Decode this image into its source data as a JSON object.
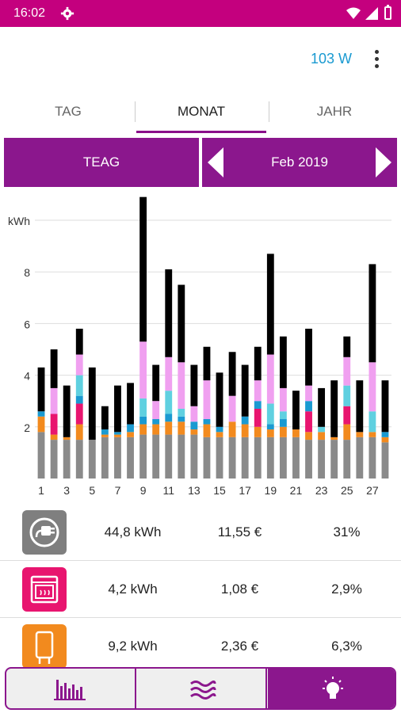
{
  "status_bar": {
    "time": "16:02"
  },
  "header": {
    "power_reading": "103 W"
  },
  "tabs": [
    {
      "label": "TAG"
    },
    {
      "label": "MONAT"
    },
    {
      "label": "JAHR"
    }
  ],
  "selector": {
    "provider": "TEAG",
    "period": "Feb 2019"
  },
  "colors": {
    "accent": "#8b178d",
    "status_bar": "#c4007e",
    "power": "#1a9ad1",
    "series": [
      "#8a8a8a",
      "#f28a1e",
      "#e8156f",
      "#1a9ad1",
      "#5fd0e0",
      "#f0a0f0",
      "#000000"
    ]
  },
  "chart_data": {
    "type": "bar",
    "stacked": true,
    "ylabel": "kWh",
    "ylim": [
      0,
      11
    ],
    "yticks": [
      2,
      4,
      6,
      8
    ],
    "xtick_labels": [
      "1",
      "3",
      "5",
      "7",
      "9",
      "11",
      "13",
      "15",
      "17",
      "19",
      "21",
      "23",
      "25",
      "27"
    ],
    "grid": true,
    "categories": [
      "1",
      "2",
      "3",
      "4",
      "5",
      "6",
      "7",
      "8",
      "9",
      "10",
      "11",
      "12",
      "13",
      "14",
      "15",
      "16",
      "17",
      "18",
      "19",
      "20",
      "21",
      "22",
      "23",
      "24",
      "25",
      "26",
      "27",
      "28"
    ],
    "series": [
      {
        "values": [
          1.8,
          1.5,
          1.5,
          1.5,
          1.5,
          1.6,
          1.6,
          1.6,
          1.7,
          1.7,
          1.7,
          1.7,
          1.7,
          1.6,
          1.6,
          1.6,
          1.6,
          1.6,
          1.6,
          1.6,
          1.6,
          1.5,
          1.5,
          1.5,
          1.5,
          1.6,
          1.6,
          1.4
        ]
      },
      {
        "values": [
          0.6,
          0.2,
          0.1,
          0.6,
          0.0,
          0.1,
          0.1,
          0.2,
          0.4,
          0.4,
          0.5,
          0.5,
          0.2,
          0.5,
          0.2,
          0.6,
          0.5,
          0.4,
          0.3,
          0.4,
          0.3,
          0.3,
          0.3,
          0.1,
          0.6,
          0.2,
          0.2,
          0.2
        ]
      },
      {
        "values": [
          0.0,
          0.8,
          0.0,
          0.8,
          0.0,
          0.0,
          0.0,
          0.0,
          0.0,
          0.0,
          0.0,
          0.0,
          0.0,
          0.0,
          0.0,
          0.0,
          0.0,
          0.7,
          0.0,
          0.0,
          0.0,
          0.8,
          0.0,
          0.0,
          0.7,
          0.0,
          0.0,
          0.0
        ]
      },
      {
        "values": [
          0.2,
          0.0,
          0.0,
          0.3,
          0.0,
          0.2,
          0.1,
          0.3,
          0.3,
          0.2,
          0.3,
          0.2,
          0.3,
          0.2,
          0.2,
          0.0,
          0.3,
          0.3,
          0.2,
          0.3,
          0.0,
          0.4,
          0.0,
          0.0,
          0.0,
          0.0,
          0.0,
          0.2
        ]
      },
      {
        "values": [
          0.0,
          0.0,
          0.0,
          0.8,
          0.0,
          0.0,
          0.0,
          0.0,
          0.7,
          0.0,
          0.9,
          0.3,
          0.0,
          0.0,
          0.0,
          0.0,
          0.0,
          0.0,
          0.8,
          0.3,
          0.0,
          0.0,
          0.2,
          0.0,
          0.8,
          0.0,
          0.8,
          0.0
        ]
      },
      {
        "values": [
          0.0,
          1.0,
          0.0,
          0.8,
          0.0,
          0.0,
          0.0,
          0.0,
          2.2,
          0.7,
          1.3,
          1.8,
          0.6,
          1.5,
          0.0,
          1.0,
          0.0,
          0.8,
          1.9,
          0.9,
          0.0,
          0.6,
          0.0,
          0.0,
          1.1,
          0.0,
          1.9,
          0.0
        ]
      },
      {
        "values": [
          1.7,
          1.5,
          2.0,
          1.0,
          2.8,
          0.9,
          1.8,
          1.6,
          5.6,
          1.4,
          3.4,
          3.0,
          1.6,
          1.3,
          2.1,
          1.7,
          2.0,
          1.3,
          3.9,
          2.0,
          1.5,
          2.2,
          1.5,
          2.2,
          0.8,
          2.0,
          3.8,
          2.0
        ]
      }
    ]
  },
  "consumption_rows": [
    {
      "icon": "plug-icon",
      "energy": "44,8 kWh",
      "cost": "11,55 €",
      "share": "31%",
      "color": "#7f7f7f"
    },
    {
      "icon": "oven-icon",
      "energy": "4,2 kWh",
      "cost": "1,08 €",
      "share": "2,9%",
      "color": "#e8156f"
    },
    {
      "icon": "water-heater-icon",
      "energy": "9,2 kWh",
      "cost": "2,36 €",
      "share": "6,3%",
      "color": "#f28a1e"
    }
  ],
  "bottom_nav": [
    {
      "icon": "bar-chart-icon"
    },
    {
      "icon": "waves-icon"
    },
    {
      "icon": "lightbulb-icon"
    }
  ]
}
